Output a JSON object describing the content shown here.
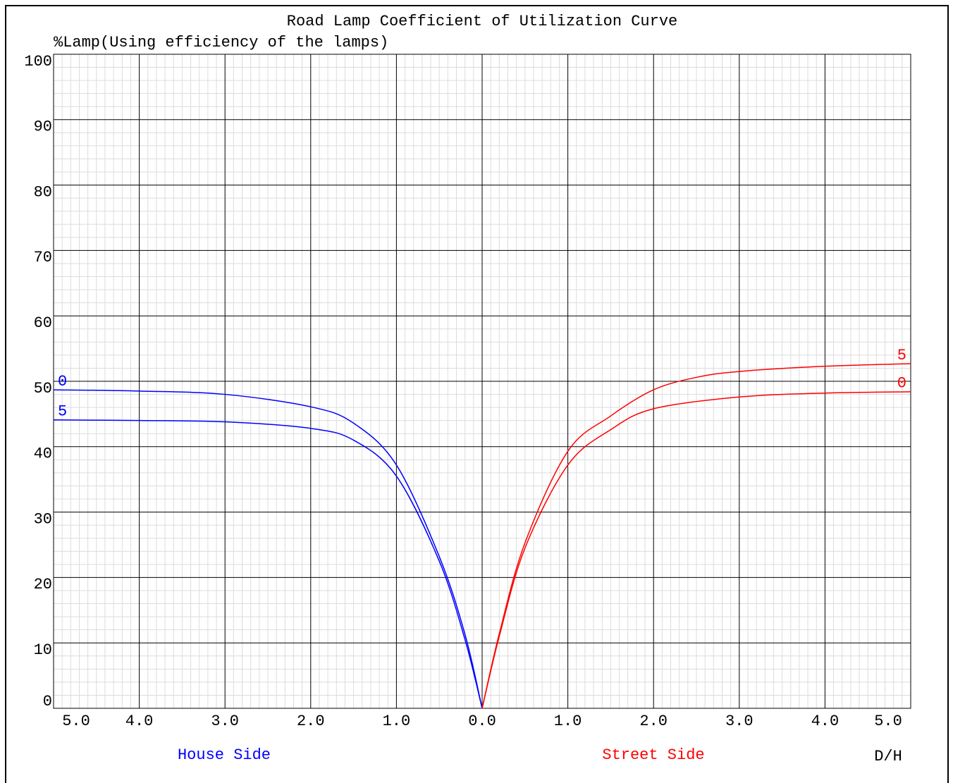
{
  "chart_data": {
    "type": "line",
    "title": "Road Lamp Coefficient of Utilization Curve",
    "y_label": "%Lamp(Using efficiency of the lamps)",
    "x_label": "D/H",
    "annotations": [
      {
        "text": "House Side",
        "color": "#0000ff"
      },
      {
        "text": "Street Side",
        "color": "#ff0000"
      }
    ],
    "xlim": [
      -5,
      5
    ],
    "ylim": [
      0,
      100
    ],
    "xticks": [
      {
        "value": -5,
        "label": "5.0"
      },
      {
        "value": -4,
        "label": "4.0"
      },
      {
        "value": -3,
        "label": "3.0"
      },
      {
        "value": -2,
        "label": "2.0"
      },
      {
        "value": -1,
        "label": "1.0"
      },
      {
        "value": 0,
        "label": "0.0"
      },
      {
        "value": 1,
        "label": "1.0"
      },
      {
        "value": 2,
        "label": "2.0"
      },
      {
        "value": 3,
        "label": "3.0"
      },
      {
        "value": 4,
        "label": "4.0"
      },
      {
        "value": 5,
        "label": "5.0"
      }
    ],
    "yticks": [
      0,
      10,
      20,
      30,
      40,
      50,
      60,
      70,
      80,
      90,
      100
    ],
    "grid": true,
    "minor_divisions": 5,
    "series": [
      {
        "name": "0",
        "color": "#0000ff",
        "x": [
          -5,
          -4,
          -3,
          -2,
          -1.5,
          -1,
          -0.5,
          -0.2,
          0
        ],
        "values": [
          48.7,
          48.5,
          48.0,
          46.1,
          43.6,
          37.2,
          23.2,
          11.3,
          0
        ]
      },
      {
        "name": "5",
        "color": "#0000ff",
        "x": [
          -5,
          -4,
          -3,
          -2,
          -1.5,
          -1,
          -0.5,
          -0.2,
          0
        ],
        "values": [
          44.1,
          44.0,
          43.8,
          42.8,
          41.0,
          35.5,
          22.5,
          10.5,
          0
        ]
      },
      {
        "name": "5",
        "color": "#ff0000",
        "x": [
          0,
          0.2,
          0.5,
          1,
          1.5,
          2,
          2.5,
          3,
          4,
          5
        ],
        "values": [
          0,
          11.4,
          25.3,
          39.3,
          44.7,
          48.7,
          50.6,
          51.5,
          52.3,
          52.7
        ]
      },
      {
        "name": "0",
        "color": "#ff0000",
        "x": [
          0,
          0.2,
          0.5,
          1,
          1.5,
          2,
          3,
          4,
          5
        ],
        "values": [
          0,
          11.0,
          24.5,
          37.2,
          42.6,
          45.8,
          47.6,
          48.2,
          48.4
        ]
      }
    ]
  }
}
